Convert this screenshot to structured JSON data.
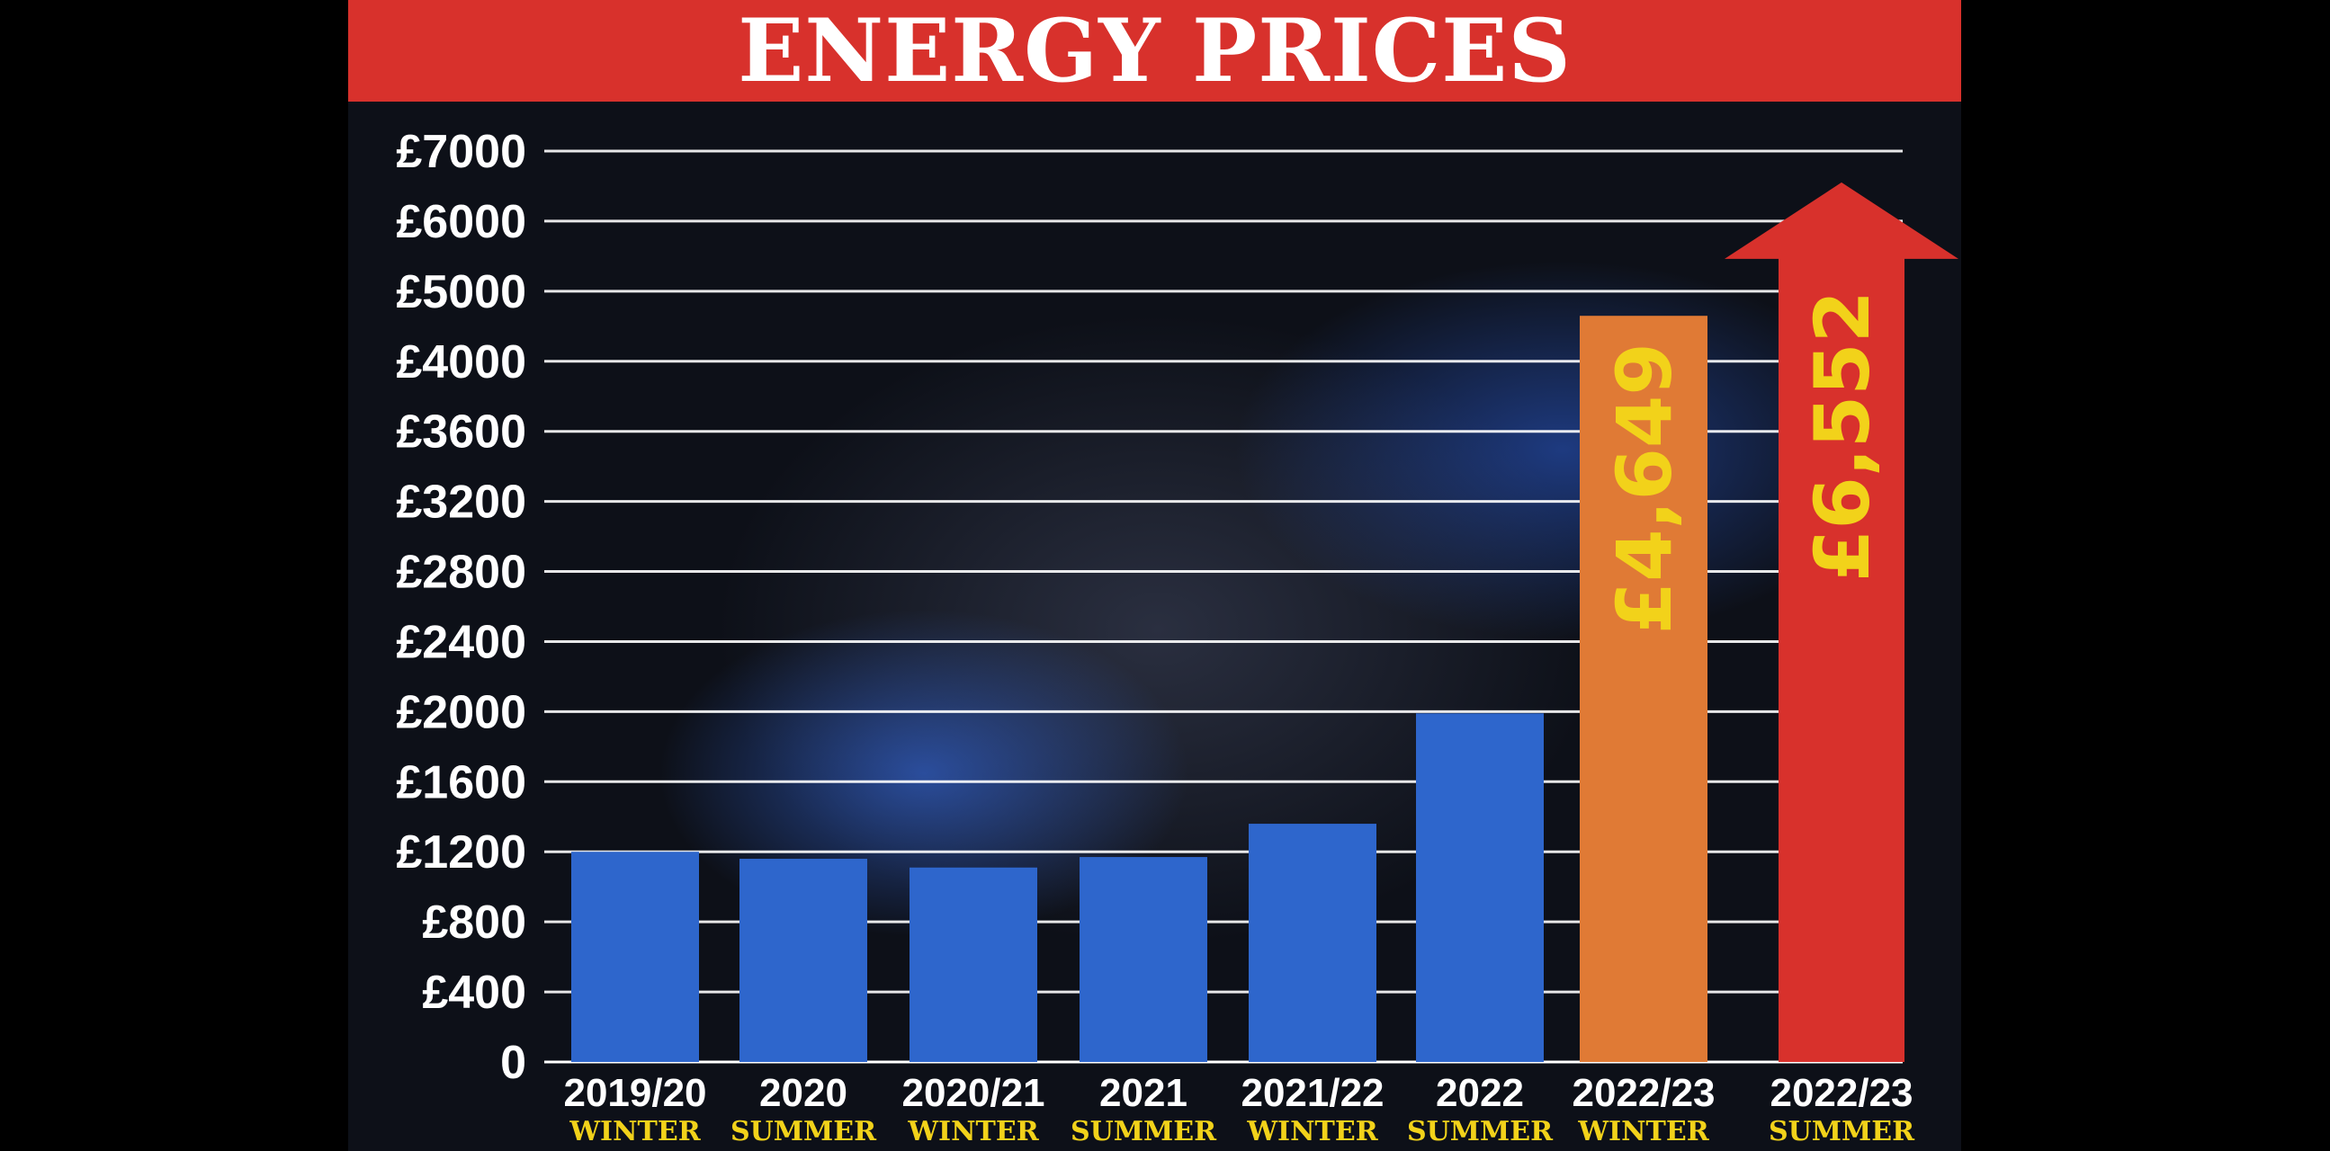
{
  "chart_data": {
    "type": "bar",
    "title": "ENERGY PRICES",
    "y_ticks": [
      "£7000",
      "£6000",
      "£5000",
      "£4000",
      "£3600",
      "£3200",
      "£2800",
      "£2400",
      "£2000",
      "£1600",
      "£1200",
      "£800",
      "£400",
      "0"
    ],
    "categories": [
      "2019/20",
      "2020",
      "2020/21",
      "2021",
      "2021/22",
      "2022",
      "2022/23",
      "2022/23"
    ],
    "subcategories": [
      "WINTER",
      "SUMMER",
      "WINTER",
      "SUMMER",
      "WINTER",
      "SUMMER",
      "WINTER",
      "SUMMER"
    ],
    "values": [
      1200,
      1160,
      1110,
      1170,
      1360,
      1990,
      4649,
      6552
    ],
    "value_labels": [
      "",
      "",
      "",
      "",
      "",
      "",
      "£4,649",
      "£6,552"
    ],
    "colors": [
      "#2e66cc",
      "#2e66cc",
      "#2e66cc",
      "#2e66cc",
      "#2e66cc",
      "#2e66cc",
      "#e07a35",
      "#d8312c"
    ],
    "last_bar_style": "arrow",
    "grid": true
  }
}
